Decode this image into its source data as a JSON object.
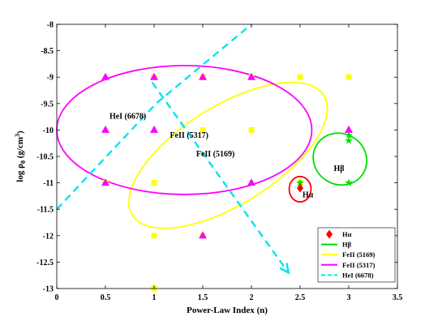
{
  "chart_data": {
    "type": "scatter",
    "xlabel": "Power-Law Index (n)",
    "ylabel_parts": {
      "pre": "log ",
      "rho": "ρ",
      "sub": "0",
      "unit": " (g/cm",
      "sup": "3",
      "close": ")"
    },
    "xlim": [
      0,
      3.5
    ],
    "ylim": [
      -13,
      -8
    ],
    "xticks": [
      0,
      0.5,
      1,
      1.5,
      2,
      2.5,
      3,
      3.5
    ],
    "xtick_labels": [
      "0",
      "0.5",
      "1",
      "1.5",
      "2",
      "2.5",
      "3",
      "3.5"
    ],
    "yticks": [
      -13,
      -12.5,
      -12,
      -11.5,
      -11,
      -10.5,
      -10,
      -9.5,
      -9,
      -8.5,
      -8
    ],
    "ytick_labels": [
      "-13",
      "-12.5",
      "-12",
      "-11.5",
      "-11",
      "-10.5",
      "-10",
      "-9.5",
      "-9",
      "-8.5",
      "-8"
    ],
    "grid": false,
    "legend_position": "bottom-right",
    "legend": [
      {
        "label": "Hα",
        "color": "#ff0000",
        "symbol": "diamond"
      },
      {
        "label": "Hβ",
        "color": "#00dd00",
        "symbol": "line"
      },
      {
        "label": "FeII (5169)",
        "color": "#ffff00",
        "symbol": "line"
      },
      {
        "label": "FeII (5317)",
        "color": "#ff00ff",
        "symbol": "line"
      },
      {
        "label": "HeI (6678)",
        "color": "#00e5ee",
        "symbol": "dashed"
      }
    ],
    "series": [
      {
        "legend_label": "FeII (5169)",
        "marker": "square",
        "color": "#ffff00",
        "points": [
          [
            1,
            -9
          ],
          [
            1.5,
            -9
          ],
          [
            2,
            -9
          ],
          [
            2.5,
            -9
          ],
          [
            3,
            -9
          ],
          [
            1.5,
            -10
          ],
          [
            2,
            -10
          ],
          [
            0.5,
            -11
          ],
          [
            1,
            -11
          ],
          [
            2.5,
            -11
          ],
          [
            1,
            -12
          ],
          [
            1.5,
            -12
          ],
          [
            1,
            -13
          ]
        ]
      },
      {
        "legend_label": "FeII (5317)",
        "marker": "triangle",
        "color": "#ff00ff",
        "points": [
          [
            0.5,
            -9
          ],
          [
            1,
            -9
          ],
          [
            1.5,
            -9
          ],
          [
            2,
            -9
          ],
          [
            0.5,
            -10
          ],
          [
            1,
            -10
          ],
          [
            3,
            -10
          ],
          [
            0.5,
            -11
          ],
          [
            2,
            -11
          ],
          [
            1.5,
            -12
          ]
        ]
      },
      {
        "legend_label": "Hβ",
        "marker": "star",
        "color": "#00dd00",
        "points": [
          [
            3,
            -10.1
          ],
          [
            3,
            -10.2
          ],
          [
            3,
            -11
          ],
          [
            2.5,
            -11
          ]
        ]
      },
      {
        "legend_label": "Hα",
        "marker": "diamond",
        "color": "#ff0000",
        "points": [
          [
            2.5,
            -11.1
          ]
        ]
      }
    ],
    "ellipses": [
      {
        "legend_label": "FeII (5169)",
        "color": "#ffff00",
        "cx": 1.76,
        "cy": -10.48,
        "rx": 1.16,
        "ry": 0.93,
        "angle_deg": -32
      },
      {
        "legend_label": "FeII (5317)",
        "color": "#ff00ff",
        "cx": 1.31,
        "cy": -10.0,
        "rx": 1.31,
        "ry": 1.22,
        "angle_deg": 0
      },
      {
        "legend_label": "Hβ",
        "color": "#00dd00",
        "cx": 2.91,
        "cy": -10.55,
        "rx": 0.28,
        "ry": 0.48,
        "angle_deg": 32
      },
      {
        "legend_label": "Hα",
        "color": "#ff0000",
        "cx": 2.5,
        "cy": -11.12,
        "rx": 0.112,
        "ry": 0.24,
        "angle_deg": 0
      }
    ],
    "heI_line": {
      "legend_label": "HeI (6678)",
      "color": "#00e5ee",
      "points": [
        [
          0,
          -11.5
        ],
        [
          1.02,
          -9.5
        ],
        [
          2.0,
          -8.0
        ]
      ]
    },
    "heI_arrow": {
      "color": "#00e5ee",
      "from": [
        0.98,
        -9.1
      ],
      "to": [
        2.38,
        -12.7
      ]
    },
    "annotations": [
      {
        "text": "HeI (6678)",
        "x": 0.73,
        "y": -9.73
      },
      {
        "text": "FeII (5317)",
        "x": 1.36,
        "y": -10.09
      },
      {
        "text": "FeII (5169)",
        "x": 1.63,
        "y": -10.45
      },
      {
        "text": "Hβ",
        "x": 2.9,
        "y": -10.72
      },
      {
        "text": "Hα",
        "x": 2.58,
        "y": -11.22
      }
    ]
  }
}
